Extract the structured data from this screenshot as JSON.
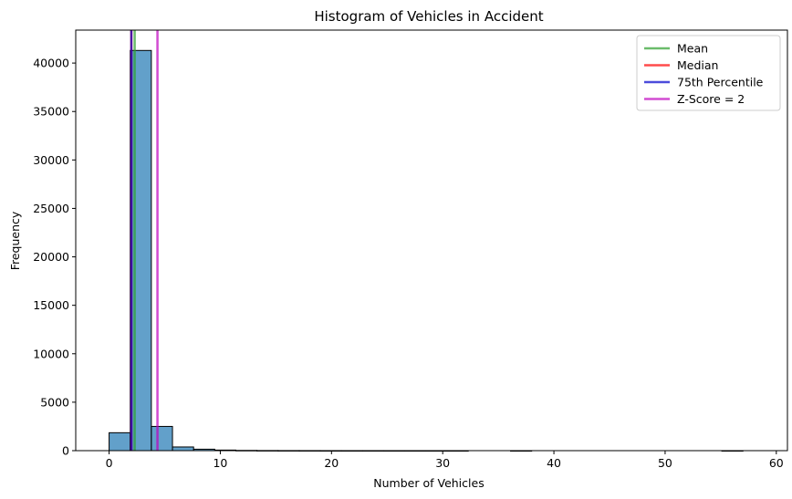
{
  "chart_data": {
    "type": "bar",
    "title": "Histogram of Vehicles in Accident",
    "xlabel": "Number of Vehicles",
    "ylabel": "Frequency",
    "xlim": [
      -3,
      61
    ],
    "ylim": [
      0,
      43400
    ],
    "xticks": [
      0,
      10,
      20,
      30,
      40,
      50,
      60
    ],
    "yticks": [
      0,
      5000,
      10000,
      15000,
      20000,
      25000,
      30000,
      35000,
      40000
    ],
    "bar_color": "#1f77b4",
    "bin_edges": [
      0,
      1.9,
      3.8,
      5.7,
      7.6,
      9.5,
      11.4,
      13.3,
      15.2,
      17.1,
      19.0,
      20.9,
      22.8,
      24.7,
      26.6,
      28.5,
      30.4,
      32.3,
      34.2,
      36.1,
      38.0,
      39.9,
      41.8,
      43.7,
      45.6,
      47.5,
      49.4,
      51.3,
      53.2,
      55.1,
      57.0
    ],
    "counts": [
      1850,
      41300,
      2500,
      380,
      150,
      60,
      25,
      12,
      8,
      5,
      3,
      2,
      2,
      1,
      1,
      1,
      1,
      0,
      0,
      1,
      0,
      0,
      0,
      0,
      0,
      0,
      0,
      0,
      0,
      1
    ],
    "lines": [
      {
        "name": "Mean",
        "x": 2.3,
        "color": "#2ca02c"
      },
      {
        "name": "Median",
        "x": 2.0,
        "color": "#ff0000"
      },
      {
        "name": "75th Percentile",
        "x": 2.0,
        "color": "#0000cc"
      },
      {
        "name": "Z-Score = 2",
        "x": 4.35,
        "color": "#bf00bf"
      }
    ],
    "legend_position": "top-right"
  }
}
